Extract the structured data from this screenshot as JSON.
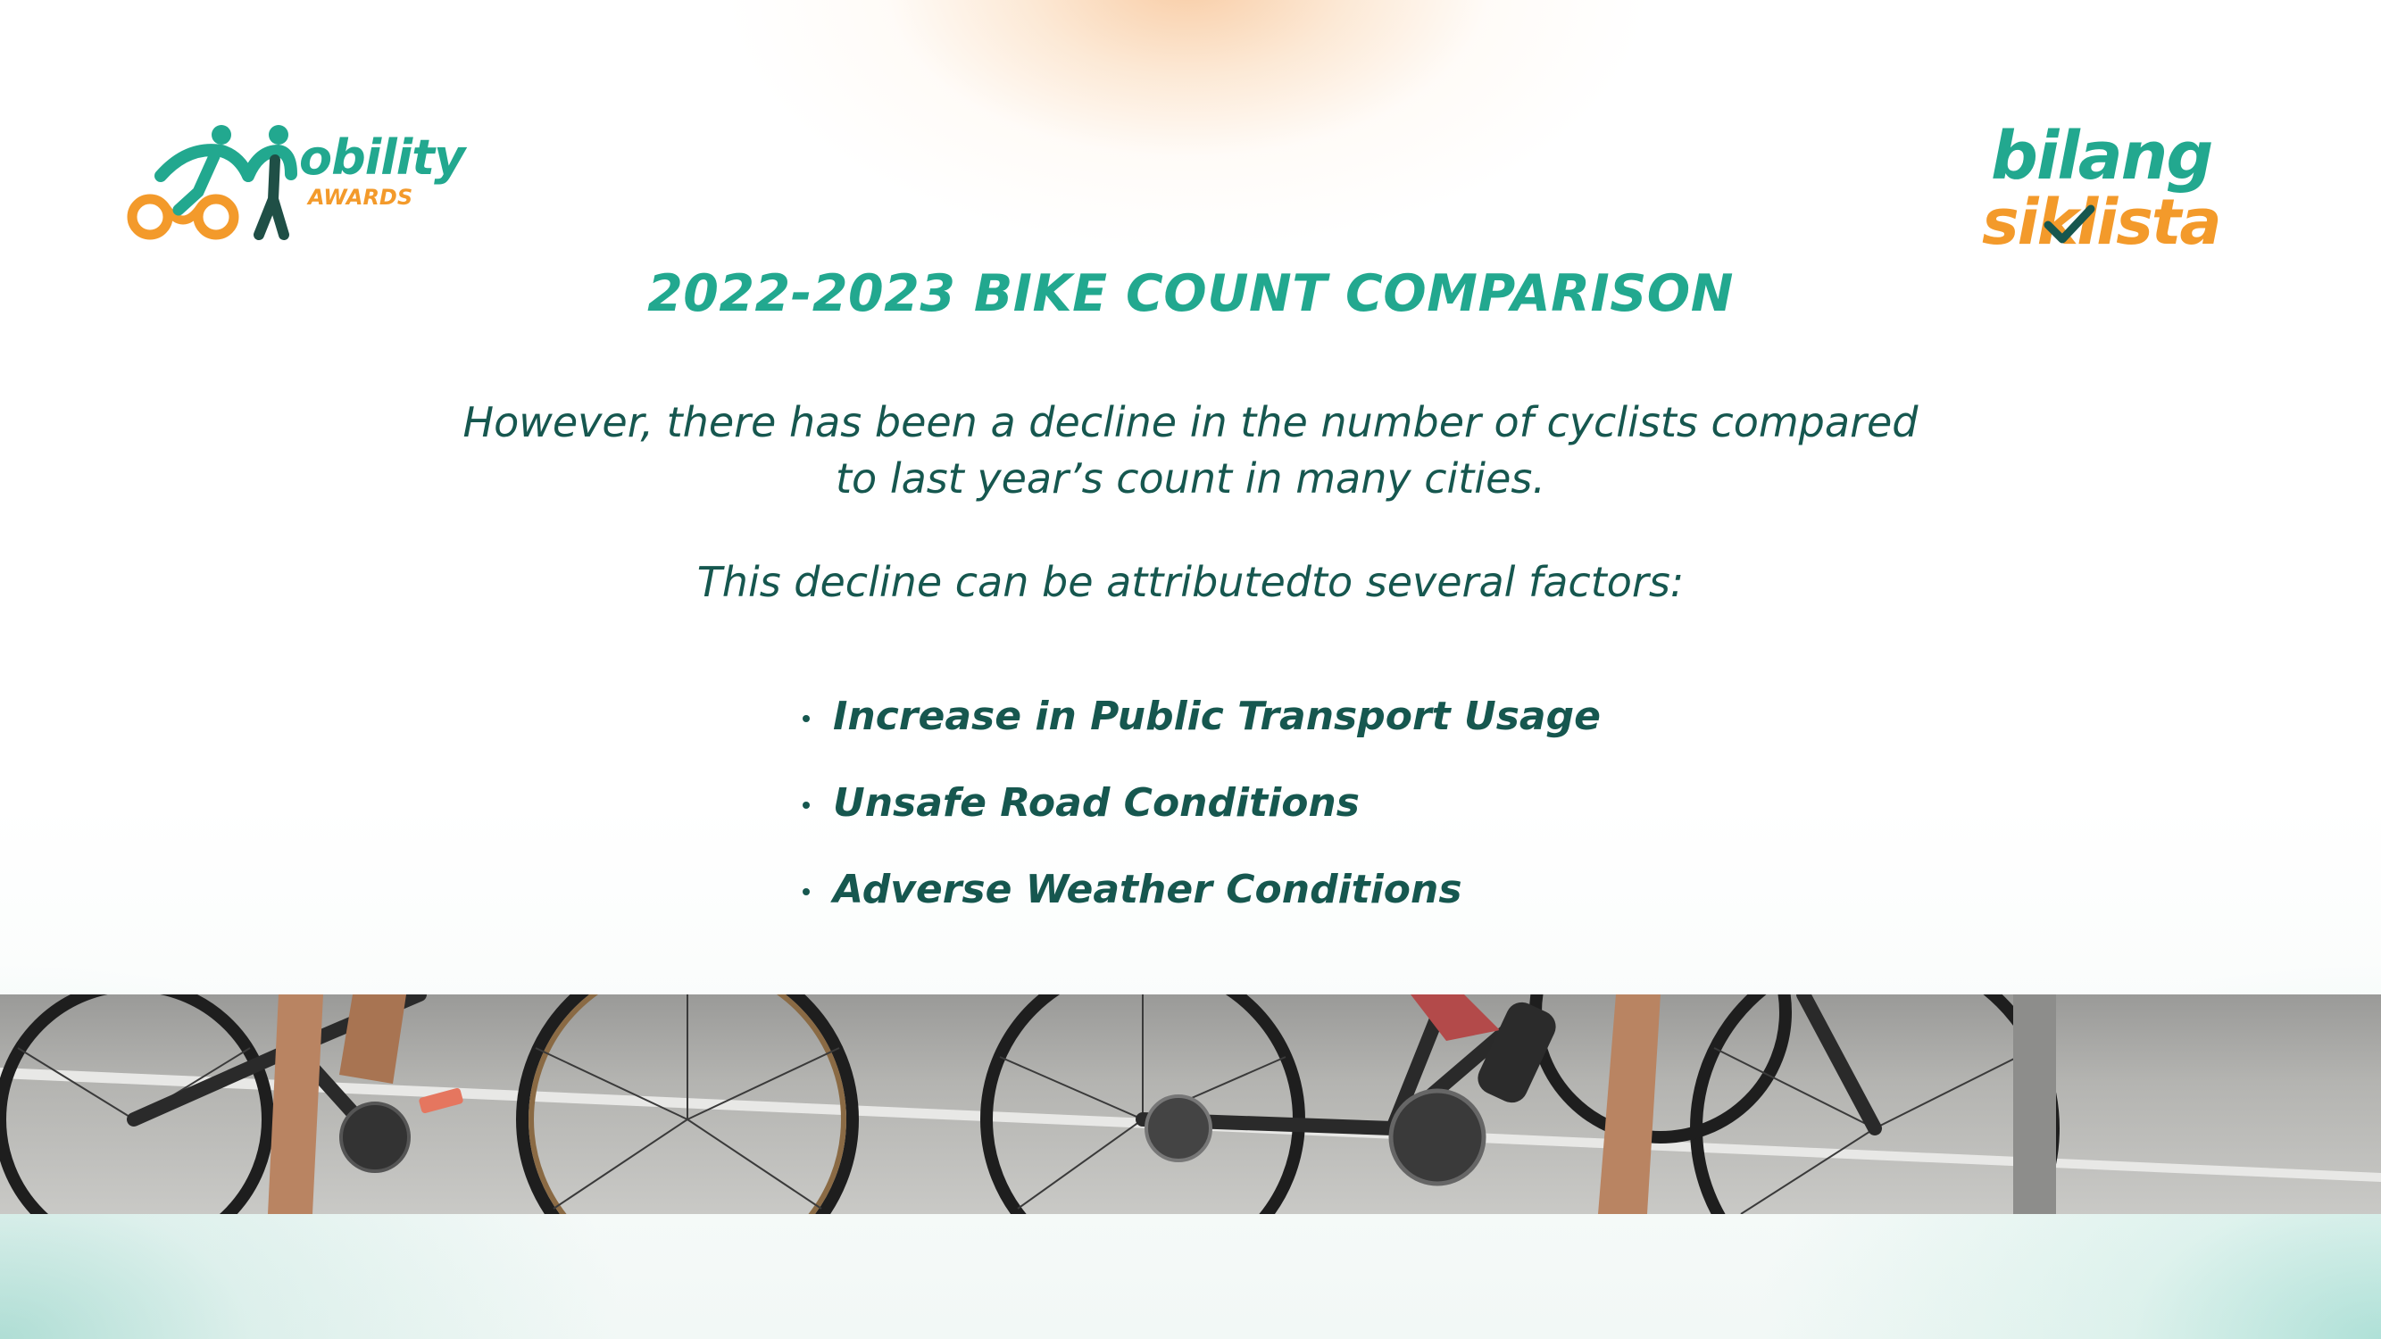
{
  "logos": {
    "left": {
      "word": "obility",
      "sub": "AWARDS"
    },
    "right": {
      "line1": "bilang",
      "line2": "siklista"
    }
  },
  "title": "2022-2023 BIKE COUNT COMPARISON",
  "intro": {
    "line1": "However, there has been a decline in the number of cyclists compared",
    "line2": "to last year’s count in many cities."
  },
  "lead": "This decline can be attributedto several factors:",
  "factors": [
    "Increase in Public Transport Usage",
    "Unsafe Road Conditions",
    "Adverse Weather Conditions"
  ],
  "colors": {
    "teal": "#22a88f",
    "dark_teal": "#16574f",
    "orange": "#f39a2b"
  }
}
